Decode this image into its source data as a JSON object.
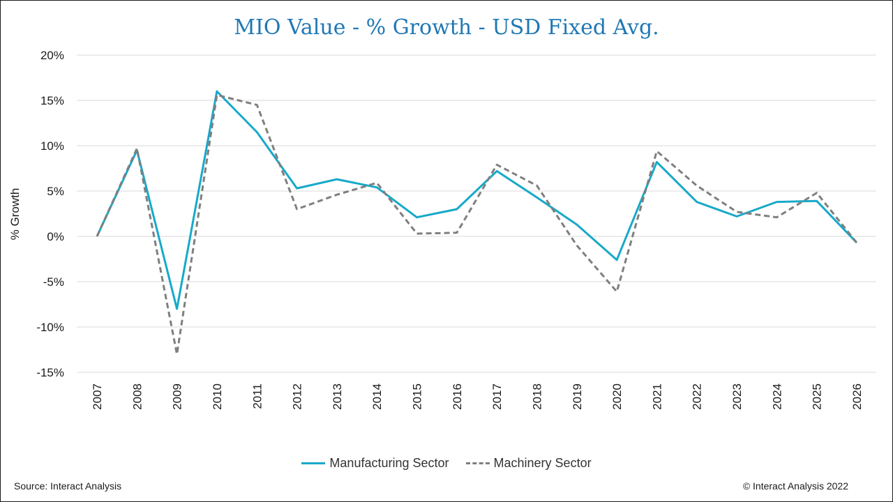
{
  "chart_data": {
    "type": "line",
    "title": "MIO Value - % Growth - USD Fixed Avg.",
    "ylabel": "% Growth",
    "xlabel": "",
    "ylim": [
      -15,
      20
    ],
    "yticks": [
      20,
      15,
      10,
      5,
      0,
      -5,
      -10,
      -15
    ],
    "ytick_labels": [
      "20%",
      "15%",
      "10%",
      "5%",
      "0%",
      "-5%",
      "-10%",
      "-15%"
    ],
    "grid": true,
    "legend_position": "bottom",
    "x": [
      "2007",
      "2008",
      "2009",
      "2010",
      "2011",
      "2012",
      "2013",
      "2014",
      "2015",
      "2016",
      "2017",
      "2018",
      "2019",
      "2020",
      "2021",
      "2022",
      "2023",
      "2024",
      "2025",
      "2026"
    ],
    "series": [
      {
        "name": "Manufacturing Sector",
        "color": "#17a9c9",
        "style": "solid",
        "values": [
          0.0,
          9.5,
          -8.0,
          16.0,
          11.5,
          5.3,
          6.3,
          5.4,
          2.1,
          3.0,
          7.2,
          4.3,
          1.3,
          -2.6,
          8.2,
          3.8,
          2.2,
          3.8,
          3.9,
          -0.7
        ]
      },
      {
        "name": "Machinery Sector",
        "color": "#7f7f7f",
        "style": "dashed",
        "values": [
          0.0,
          9.7,
          -13.0,
          15.6,
          14.5,
          3.0,
          4.6,
          5.9,
          0.3,
          0.4,
          7.9,
          5.6,
          -1.0,
          -6.1,
          9.4,
          5.6,
          2.7,
          2.1,
          4.8,
          -0.7
        ]
      }
    ]
  },
  "footer": {
    "source": "Source: Interact Analysis",
    "copyright": "© Interact Analysis 2022"
  }
}
